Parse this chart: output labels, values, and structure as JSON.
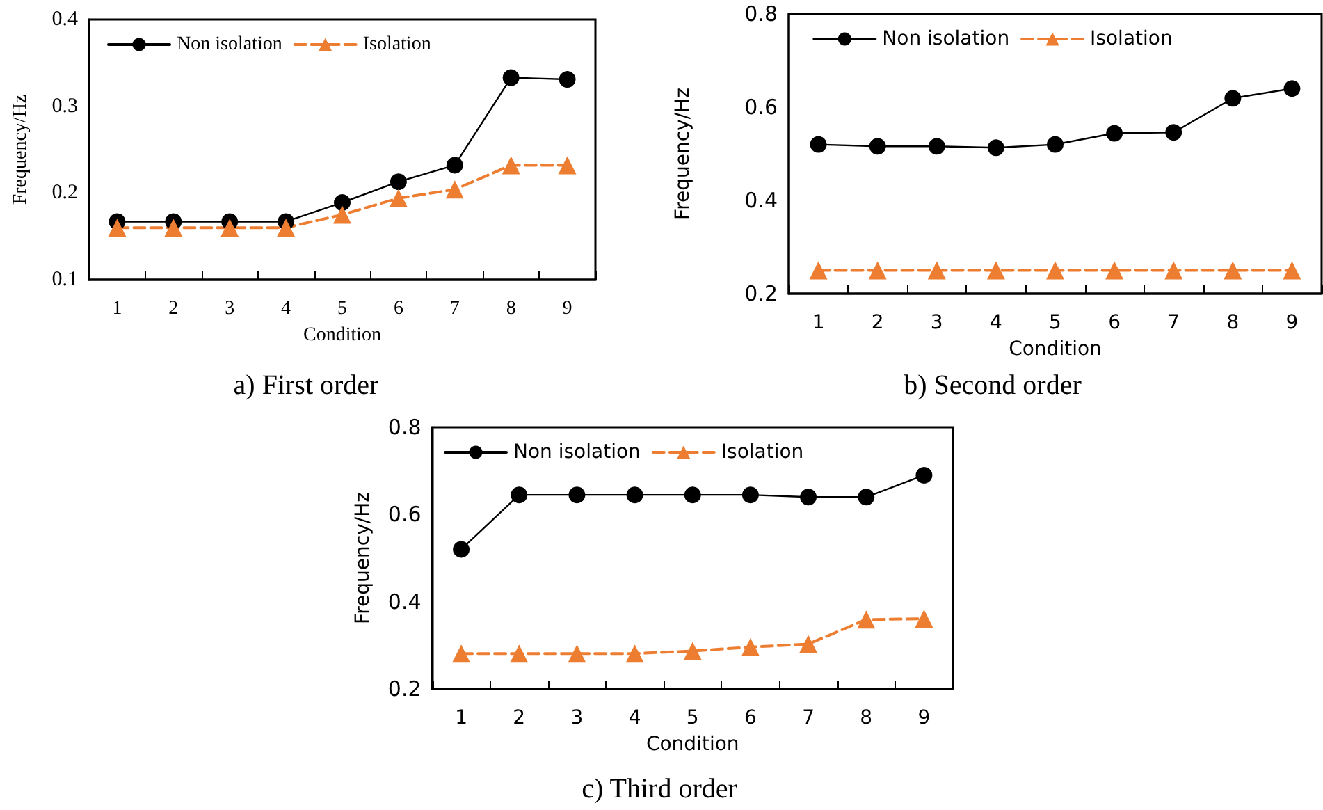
{
  "chart_data": [
    {
      "type": "line",
      "title": "a) First order",
      "xlabel": "Condition",
      "ylabel": "Frequency/Hz",
      "categories": [
        "1",
        "2",
        "3",
        "4",
        "5",
        "6",
        "7",
        "8",
        "9"
      ],
      "ylim": [
        0.1,
        0.4
      ],
      "yticks": [
        0.1,
        0.2,
        0.3,
        0.4
      ],
      "grid": false,
      "legend": "top left",
      "series": [
        {
          "name": "Non isolation",
          "color": "#000000",
          "marker": "circle",
          "line_style": "solid",
          "values": [
            0.167,
            0.167,
            0.167,
            0.167,
            0.189,
            0.213,
            0.232,
            0.333,
            0.331
          ]
        },
        {
          "name": "Isolation",
          "color": "#ed7d31",
          "marker": "triangle",
          "line_style": "dashed",
          "values": [
            0.16,
            0.16,
            0.16,
            0.16,
            0.175,
            0.194,
            0.204,
            0.232,
            0.232
          ]
        }
      ]
    },
    {
      "type": "line",
      "title": "b) Second order",
      "xlabel": "Condition",
      "ylabel": "Frequency/Hz",
      "categories": [
        "1",
        "2",
        "3",
        "4",
        "5",
        "6",
        "7",
        "8",
        "9"
      ],
      "ylim": [
        0.2,
        0.8
      ],
      "yticks": [
        0.2,
        0.4,
        0.6,
        0.8
      ],
      "grid": false,
      "legend": "top",
      "series": [
        {
          "name": "Non isolation",
          "color": "#000000",
          "marker": "circle",
          "line_style": "solid",
          "values": [
            0.52,
            0.516,
            0.516,
            0.513,
            0.52,
            0.544,
            0.546,
            0.619,
            0.64
          ]
        },
        {
          "name": "Isolation",
          "color": "#ed7d31",
          "marker": "triangle",
          "line_style": "dashed",
          "values": [
            0.25,
            0.25,
            0.25,
            0.25,
            0.25,
            0.25,
            0.25,
            0.25,
            0.25
          ]
        }
      ]
    },
    {
      "type": "line",
      "title": "c) Third order",
      "xlabel": "Condition",
      "ylabel": "Frequency/Hz",
      "categories": [
        "1",
        "2",
        "3",
        "4",
        "5",
        "6",
        "7",
        "8",
        "9"
      ],
      "ylim": [
        0.2,
        0.8
      ],
      "yticks": [
        0.2,
        0.4,
        0.6,
        0.8
      ],
      "grid": false,
      "legend": "top left",
      "series": [
        {
          "name": "Non isolation",
          "color": "#000000",
          "marker": "circle",
          "line_style": "solid",
          "values": [
            0.52,
            0.645,
            0.645,
            0.645,
            0.645,
            0.645,
            0.64,
            0.64,
            0.69
          ]
        },
        {
          "name": "Isolation",
          "color": "#ed7d31",
          "marker": "triangle",
          "line_style": "dashed",
          "values": [
            0.281,
            0.281,
            0.281,
            0.281,
            0.287,
            0.296,
            0.303,
            0.359,
            0.361
          ]
        }
      ]
    }
  ]
}
